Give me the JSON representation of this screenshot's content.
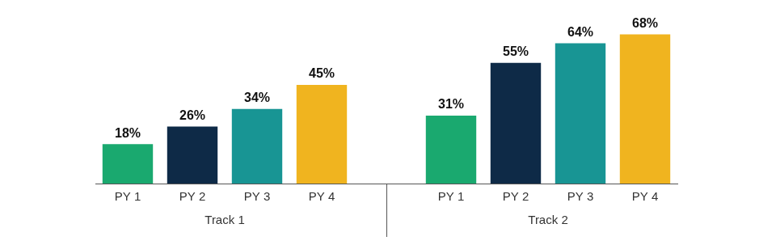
{
  "chart_data": {
    "type": "bar",
    "categories": [
      "PY 1",
      "PY 2",
      "PY 3",
      "PY 4"
    ],
    "colors": [
      "#1aa96f",
      "#0e2a47",
      "#189594",
      "#f0b41f"
    ],
    "series": [
      {
        "name": "Track 1",
        "values": [
          18,
          26,
          34,
          45
        ],
        "value_labels": [
          "18%",
          "26%",
          "34%",
          "45%"
        ]
      },
      {
        "name": "Track 2",
        "values": [
          31,
          55,
          64,
          68
        ],
        "value_labels": [
          "31%",
          "55%",
          "64%",
          "68%"
        ]
      }
    ],
    "ylim": [
      0,
      80
    ],
    "grid": false,
    "data_labels": true,
    "tick_labels": "x"
  }
}
